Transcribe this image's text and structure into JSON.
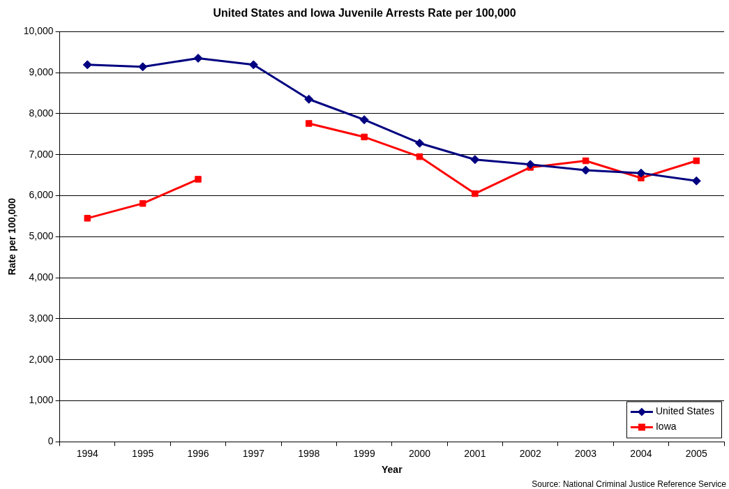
{
  "chart_data": {
    "type": "line",
    "title": "United States and Iowa Juvenile Arrests Rate per 100,000",
    "xlabel": "Year",
    "ylabel": "Rate per 100,000",
    "categories": [
      "1994",
      "1995",
      "1996",
      "1997",
      "1998",
      "1999",
      "2000",
      "2001",
      "2002",
      "2003",
      "2004",
      "2005"
    ],
    "series": [
      {
        "name": "United States",
        "color": "#000080",
        "marker": "diamond",
        "values": [
          9190,
          9140,
          9350,
          9190,
          8350,
          7850,
          7280,
          6880,
          6760,
          6620,
          6550,
          6360
        ]
      },
      {
        "name": "Iowa",
        "color": "#ff0000",
        "marker": "square",
        "values": [
          5450,
          5810,
          6400,
          null,
          7760,
          7430,
          6950,
          6050,
          6690,
          6850,
          6430,
          6850
        ]
      }
    ],
    "ylim": [
      0,
      10000
    ],
    "yticks": [
      0,
      {
        "value": 1000,
        "label": "1,000"
      },
      {
        "value": 2000,
        "label": "2,000"
      },
      {
        "value": 3000,
        "label": "3,000"
      },
      {
        "value": 4000,
        "label": "4,000"
      },
      {
        "value": 5000,
        "label": "5,000"
      },
      {
        "value": 6000,
        "label": "6,000"
      },
      {
        "value": 7000,
        "label": "7,000"
      },
      {
        "value": 8000,
        "label": "8,000"
      },
      {
        "value": 9000,
        "label": "9,000"
      },
      {
        "value": 10000,
        "label": "10,000"
      }
    ],
    "grid": "y",
    "legend": "bottom right",
    "annotations": [
      "Source: National Criminal Justice Reference Service"
    ]
  }
}
